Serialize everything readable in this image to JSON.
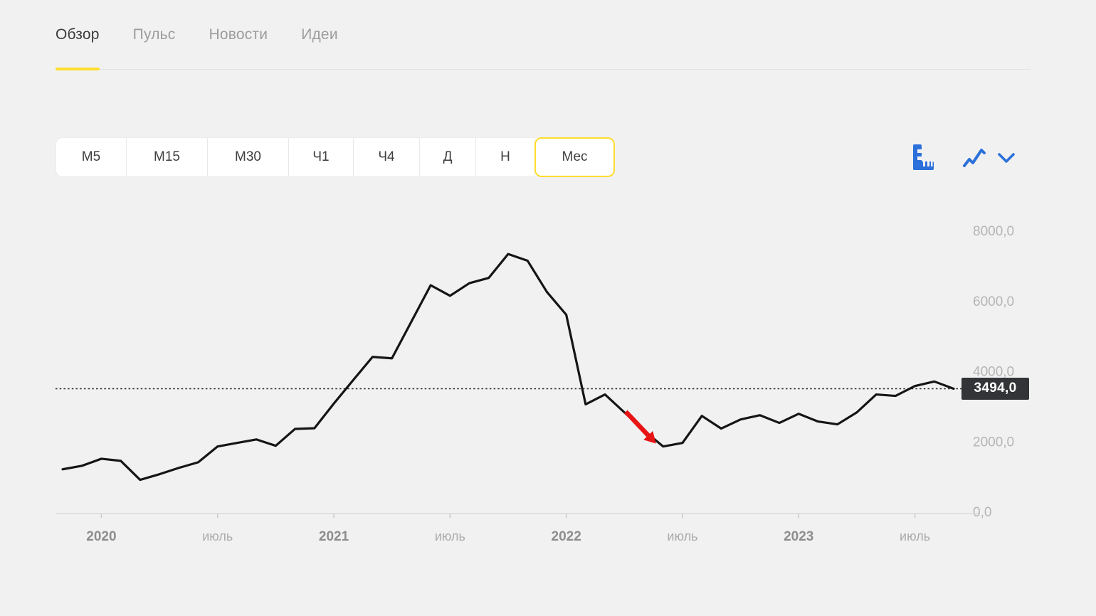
{
  "tabs": {
    "items": [
      {
        "label": "Обзор",
        "active": true
      },
      {
        "label": "Пульс",
        "active": false
      },
      {
        "label": "Новости",
        "active": false
      },
      {
        "label": "Идеи",
        "active": false
      }
    ]
  },
  "timeframes": {
    "items": [
      {
        "label": "М5",
        "selected": false
      },
      {
        "label": "М15",
        "selected": false
      },
      {
        "label": "М30",
        "selected": false
      },
      {
        "label": "Ч1",
        "selected": false
      },
      {
        "label": "Ч4",
        "selected": false
      },
      {
        "label": "Д",
        "selected": false
      },
      {
        "label": "Н",
        "selected": false
      },
      {
        "label": "Мес",
        "selected": true
      }
    ]
  },
  "toolbar": {
    "icons": [
      "ruler-icon",
      "line-chart-icon",
      "chevron-down-icon"
    ]
  },
  "current_price": {
    "value": 3494.0,
    "label": "3494,0"
  },
  "colors": {
    "accent_yellow": "#ffdd2d",
    "icon_blue": "#2c70da",
    "line_black": "#151515",
    "badge_bg": "#333437",
    "arrow_red": "#e81414",
    "background": "#f1f1f2",
    "axis_gray": "#dadada",
    "label_gray": "#b5b5b6"
  },
  "chart_data": {
    "type": "line",
    "title": "",
    "xlabel": "",
    "ylabel": "",
    "x_unit": "month",
    "months": [
      "2019-11",
      "2019-12",
      "2020-01",
      "2020-02",
      "2020-03",
      "2020-04",
      "2020-05",
      "2020-06",
      "2020-07",
      "2020-08",
      "2020-09",
      "2020-10",
      "2020-11",
      "2020-12",
      "2021-01",
      "2021-02",
      "2021-03",
      "2021-04",
      "2021-05",
      "2021-06",
      "2021-07",
      "2021-08",
      "2021-09",
      "2021-10",
      "2021-11",
      "2021-12",
      "2022-01",
      "2022-02",
      "2022-03",
      "2022-04",
      "2022-05",
      "2022-06",
      "2022-07",
      "2022-08",
      "2022-09",
      "2022-10",
      "2022-11",
      "2022-12",
      "2023-01",
      "2023-02",
      "2023-03",
      "2023-04",
      "2023-05",
      "2023-06",
      "2023-07",
      "2023-08",
      "2023-09"
    ],
    "series": [
      {
        "name": "price",
        "values": [
          1200,
          1300,
          1500,
          1440,
          900,
          1060,
          1240,
          1400,
          1850,
          1950,
          2050,
          1870,
          2350,
          2370,
          3070,
          3740,
          4400,
          4360,
          5400,
          6440,
          6140,
          6500,
          6650,
          7330,
          7140,
          6250,
          5600,
          3050,
          3330,
          2820,
          2310,
          1850,
          1950,
          2720,
          2360,
          2620,
          2740,
          2520,
          2780,
          2560,
          2480,
          2820,
          3330,
          3290,
          3570,
          3700,
          3494
        ]
      }
    ],
    "ylim": [
      0,
      8000
    ],
    "grid": false,
    "legend": null,
    "y_ticks": [
      {
        "value": 8000,
        "label": "8000,0"
      },
      {
        "value": 6000,
        "label": "6000,0"
      },
      {
        "value": 4000,
        "label": "4000,0"
      },
      {
        "value": 2000,
        "label": "2000,0"
      },
      {
        "value": 0,
        "label": "0,0"
      }
    ],
    "x_tick_labels": [
      {
        "index": 2,
        "label": "2020",
        "kind": "year"
      },
      {
        "index": 8,
        "label": "июль",
        "kind": "month"
      },
      {
        "index": 14,
        "label": "2021",
        "kind": "year"
      },
      {
        "index": 20,
        "label": "июль",
        "kind": "month"
      },
      {
        "index": 26,
        "label": "2022",
        "kind": "year"
      },
      {
        "index": 32,
        "label": "июль",
        "kind": "month"
      },
      {
        "index": 38,
        "label": "2023",
        "kind": "year"
      },
      {
        "index": 44,
        "label": "июль",
        "kind": "month"
      }
    ],
    "reference_line": {
      "value": 3494,
      "style": "dotted",
      "label": "3494,0"
    },
    "annotations": [
      {
        "type": "arrow",
        "color": "#e81414",
        "from_index": 29,
        "to_index": 31,
        "note": "red arrow pointing to June 2022 low"
      }
    ]
  }
}
